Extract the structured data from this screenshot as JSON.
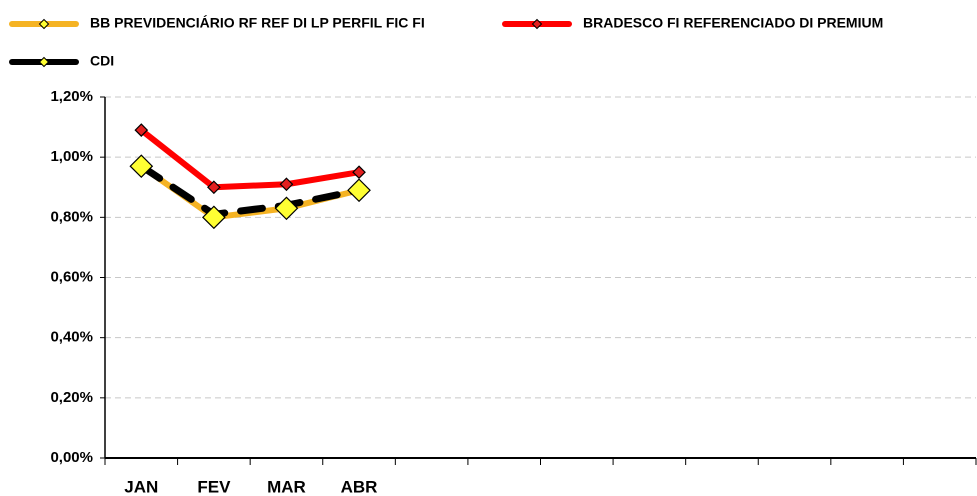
{
  "chart_data": {
    "type": "line",
    "categories": [
      "JAN",
      "FEV",
      "MAR",
      "ABR",
      null,
      null,
      null,
      null,
      null,
      null,
      null,
      null
    ],
    "series": [
      {
        "name": "BB PREVIDENCIÁRIO RF REF DI LP PERFIL FIC FI",
        "color": "#f5b323",
        "marker_color": "#ffff33",
        "values": [
          0.97,
          0.8,
          0.83,
          0.89,
          null,
          null,
          null,
          null,
          null,
          null,
          null,
          null
        ]
      },
      {
        "name": "BRADESCO FI REFERENCIADO DI PREMIUM",
        "color": "#ff0000",
        "marker_color": "#e32020",
        "values": [
          1.09,
          0.9,
          0.91,
          0.95,
          null,
          null,
          null,
          null,
          null,
          null,
          null,
          null
        ]
      },
      {
        "name": "CDI",
        "color": "#000000",
        "marker_color": "#ffff33",
        "values": [
          0.97,
          0.81,
          0.84,
          0.89,
          null,
          null,
          null,
          null,
          null,
          null,
          null,
          null
        ]
      }
    ],
    "ylim": [
      0,
      1.2
    ],
    "yticks": [
      {
        "value": 0,
        "label": "0,00%"
      },
      {
        "value": 0.2,
        "label": "0,20%"
      },
      {
        "value": 0.4,
        "label": "0,40%"
      },
      {
        "value": 0.6,
        "label": "0,60%"
      },
      {
        "value": 0.8,
        "label": "0,80%"
      },
      {
        "value": 1.0,
        "label": "1,00%"
      },
      {
        "value": 1.2,
        "label": "1,20%"
      }
    ],
    "grid": true
  }
}
